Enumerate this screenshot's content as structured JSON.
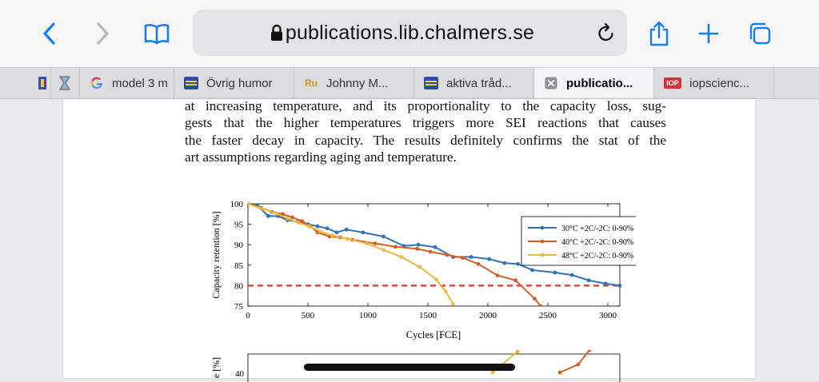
{
  "browser": {
    "url": "publications.lib.chalmers.se",
    "tabs": [
      {
        "label": "",
        "icon": "bookmark-icon"
      },
      {
        "label": "",
        "icon": "hourglass-icon"
      },
      {
        "label": "model 3 m",
        "icon": "google-icon"
      },
      {
        "label": "Övrig humor",
        "icon": "forum-icon"
      },
      {
        "label": "Johnny M...",
        "icon": "ru-icon"
      },
      {
        "label": "aktiva tråd...",
        "icon": "forum-icon"
      },
      {
        "label": "publicatio...",
        "icon": "close-icon",
        "active": true
      },
      {
        "label": "iopscienc...",
        "icon": "iop-icon"
      }
    ]
  },
  "document": {
    "lines": [
      "at increasing temperature, and its proportionality to the capacity loss, sug-",
      "gests that the higher temperatures triggers more SEI reactions that causes",
      "the faster decay in capacity. The results definitely confirms the stat of the",
      "art assumptions regarding aging and temperature."
    ]
  },
  "chart_data": [
    {
      "type": "line",
      "xlabel": "Cycles [FCE]",
      "ylabel": "Capacity retention [%]",
      "xlim": [
        0,
        3100
      ],
      "ylim": [
        75,
        100
      ],
      "xticks": [
        0,
        500,
        1000,
        1500,
        2000,
        2500,
        3000
      ],
      "yticks": [
        75,
        80,
        85,
        90,
        95,
        100
      ],
      "legend_position": "top-right",
      "threshold": {
        "y": 80,
        "color": "#e8312f",
        "style": "dashed"
      },
      "series": [
        {
          "name": "30°C +2C/-2C: 0-90%",
          "color": "#2f72b5",
          "x": [
            0,
            80,
            170,
            250,
            330,
            420,
            500,
            580,
            660,
            740,
            820,
            960,
            1130,
            1300,
            1420,
            1560,
            1710,
            1860,
            2010,
            2140,
            2250,
            2370,
            2560,
            2700,
            2840,
            2980,
            3100
          ],
          "y": [
            100,
            99.5,
            97,
            97,
            96,
            95.6,
            95,
            94.5,
            94,
            93,
            93.7,
            93,
            92,
            89.7,
            90,
            89.4,
            87,
            87,
            86.5,
            85.5,
            85.3,
            83.8,
            83.2,
            82.6,
            81.3,
            80.5,
            80
          ]
        },
        {
          "name": "40°C +2C/-2C: 0-90%",
          "color": "#d35f28",
          "x": [
            0,
            110,
            200,
            290,
            370,
            450,
            520,
            580,
            680,
            770,
            870,
            1060,
            1230,
            1410,
            1520,
            1660,
            1790,
            1920,
            2080,
            2230,
            2390,
            2440
          ],
          "y": [
            100,
            99,
            98,
            97.5,
            96.7,
            95.8,
            94.5,
            93,
            92,
            91.8,
            91.2,
            90.3,
            89.5,
            89,
            88.3,
            87.5,
            86.8,
            85.3,
            82.5,
            81.3,
            76.8,
            75
          ]
        },
        {
          "name": "48°C +2C/-2C: 0-90%",
          "color": "#ecb83d",
          "x": [
            0,
            120,
            240,
            330,
            420,
            510,
            600,
            700,
            830,
            990,
            1130,
            1280,
            1430,
            1570,
            1650,
            1710
          ],
          "y": [
            100,
            98.8,
            97.6,
            96.4,
            95.4,
            94.5,
            93.3,
            92.3,
            91.4,
            90.3,
            88.7,
            87,
            84.6,
            81.5,
            78.5,
            75.5
          ]
        }
      ]
    },
    {
      "type": "line",
      "ylabel": "e [%]",
      "yticks": [
        40
      ],
      "partial": true
    }
  ]
}
